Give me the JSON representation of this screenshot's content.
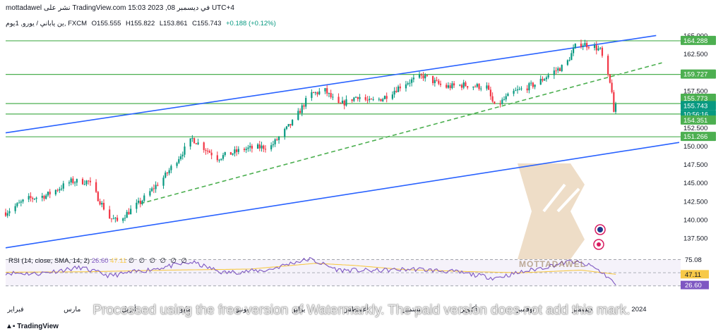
{
  "header": {
    "publish_line": "mottadawel نشر على TradingView.com في ديسمبر 08, 2023 15:03 UTC+4",
    "symbol_line": "ين ياباني / يورو, 1يوم, FXCM",
    "open": "O155.555",
    "high": "H155.822",
    "low": "L153.861",
    "close": "C155.743",
    "change": "+0.188 (+0.12%)"
  },
  "rsi_legend": {
    "label": "RSI (14, close, SMA, 14, 2)",
    "rsi_value": "26.60",
    "sma_value": "47.11",
    "zeros": "∅ ∅ ∅ ∅ ∅ ∅"
  },
  "brand": {
    "tradingview": "TradingView",
    "logo_text": "MOTTADAWEL"
  },
  "watermark": "Processed using the free version of Watermarkly. The paid version does not add this mark.",
  "colors": {
    "up": "#089981",
    "down": "#f23645",
    "level_line": "#4caf50",
    "channel": "#2962ff",
    "rsi": "#7e57c2",
    "rsi_sma": "#f7c948",
    "logo": "#e8d2b4"
  },
  "chart_data": {
    "type": "candlestick",
    "symbol": "EURJPY",
    "timeframe": "1D",
    "price_axis": {
      "range": [
        135.8,
        166.0
      ],
      "ticks": [
        "165.000",
        "162.500",
        "157.500",
        "152.500",
        "150.000",
        "147.500",
        "145.000",
        "142.500",
        "140.000",
        "137.500"
      ]
    },
    "level_labels": [
      {
        "value": 164.288,
        "label": "164.288",
        "style": "level"
      },
      {
        "value": 159.727,
        "label": "159.727",
        "style": "level"
      },
      {
        "value": 155.773,
        "label": "155.773",
        "style": "level"
      },
      {
        "value": 155.743,
        "label": "155.743",
        "style": "price"
      },
      {
        "value": 154.351,
        "label": "154.351",
        "style": "level"
      },
      {
        "value": 151.266,
        "label": "151.266",
        "style": "level"
      }
    ],
    "countdown": "10:56:16",
    "time_axis": {
      "labels": [
        "فبراير",
        "مارس",
        "أبريل",
        "مايو",
        "يونيو",
        "يوليو",
        "أغسطس",
        "سبتمبر",
        "أكتوبر",
        "نوفمبر",
        "ديسمبر",
        "2024"
      ],
      "range": [
        "2023-01-25",
        "2024-01-10"
      ]
    },
    "trend_lines": [
      {
        "name": "channel-upper",
        "points": [
          [
            "2023-01-25",
            151.8
          ],
          [
            "2023-12-29",
            165.0
          ]
        ],
        "style": "solid"
      },
      {
        "name": "channel-lower",
        "points": [
          [
            "2023-01-25",
            136.2
          ],
          [
            "2024-01-10",
            150.5
          ]
        ],
        "style": "solid"
      },
      {
        "name": "mid-trend",
        "points": [
          [
            "2023-04-05",
            142.2
          ],
          [
            "2024-01-01",
            161.3
          ]
        ],
        "style": "dashed"
      }
    ],
    "horizontal_levels": [
      164.288,
      159.727,
      155.773,
      154.351,
      151.266
    ],
    "ohlc_anchors": [
      [
        "2023-01-25",
        141.0
      ],
      [
        "2023-02-05",
        142.8
      ],
      [
        "2023-02-15",
        143.3
      ],
      [
        "2023-02-28",
        145.2
      ],
      [
        "2023-03-09",
        145.2
      ],
      [
        "2023-03-20",
        140.3
      ],
      [
        "2023-03-24",
        139.8
      ],
      [
        "2023-04-05",
        142.4
      ],
      [
        "2023-04-18",
        146.0
      ],
      [
        "2023-05-02",
        151.0
      ],
      [
        "2023-05-15",
        148.4
      ],
      [
        "2023-05-29",
        149.6
      ],
      [
        "2023-06-12",
        150.0
      ],
      [
        "2023-06-24",
        153.5
      ],
      [
        "2023-07-02",
        157.0
      ],
      [
        "2023-07-10",
        157.5
      ],
      [
        "2023-07-17",
        155.5
      ],
      [
        "2023-07-27",
        156.8
      ],
      [
        "2023-08-02",
        156.0
      ],
      [
        "2023-08-09",
        156.5
      ],
      [
        "2023-08-20",
        158.5
      ],
      [
        "2023-08-30",
        159.5
      ],
      [
        "2023-09-10",
        158.0
      ],
      [
        "2023-09-20",
        158.3
      ],
      [
        "2023-10-02",
        158.0
      ],
      [
        "2023-10-06",
        155.3
      ],
      [
        "2023-10-16",
        157.3
      ],
      [
        "2023-10-28",
        158.5
      ],
      [
        "2023-11-05",
        160.0
      ],
      [
        "2023-11-12",
        161.0
      ],
      [
        "2023-11-18",
        164.0
      ],
      [
        "2023-11-26",
        163.6
      ],
      [
        "2023-11-30",
        163.0
      ],
      [
        "2023-12-04",
        159.3
      ],
      [
        "2023-12-06",
        157.6
      ],
      [
        "2023-12-07",
        154.2
      ],
      [
        "2023-12-08",
        155.743
      ]
    ],
    "rsi": {
      "levels": [
        75.08,
        50.08
      ],
      "rsi_last": 26.6,
      "sma_last": 47.11,
      "rsi_anchors": [
        [
          "2023-01-25",
          50
        ],
        [
          "2023-02-10",
          48
        ],
        [
          "2023-03-05",
          60
        ],
        [
          "2023-03-20",
          44
        ],
        [
          "2023-04-08",
          55
        ],
        [
          "2023-05-02",
          70
        ],
        [
          "2023-05-18",
          50
        ],
        [
          "2023-06-10",
          55
        ],
        [
          "2023-06-24",
          70
        ],
        [
          "2023-07-02",
          76
        ],
        [
          "2023-07-17",
          55
        ],
        [
          "2023-08-05",
          54
        ],
        [
          "2023-08-25",
          57
        ],
        [
          "2023-09-15",
          52
        ],
        [
          "2023-10-06",
          40
        ],
        [
          "2023-10-25",
          55
        ],
        [
          "2023-11-15",
          72
        ],
        [
          "2023-11-26",
          62
        ],
        [
          "2023-12-04",
          42
        ],
        [
          "2023-12-08",
          26.6
        ]
      ],
      "sma_anchors": [
        [
          "2023-01-25",
          51
        ],
        [
          "2023-03-10",
          52
        ],
        [
          "2023-04-20",
          55
        ],
        [
          "2023-06-01",
          57
        ],
        [
          "2023-07-05",
          68
        ],
        [
          "2023-07-25",
          64
        ],
        [
          "2023-08-20",
          56
        ],
        [
          "2023-09-25",
          52
        ],
        [
          "2023-10-20",
          50
        ],
        [
          "2023-11-20",
          55
        ],
        [
          "2023-12-08",
          47.11
        ]
      ]
    }
  }
}
